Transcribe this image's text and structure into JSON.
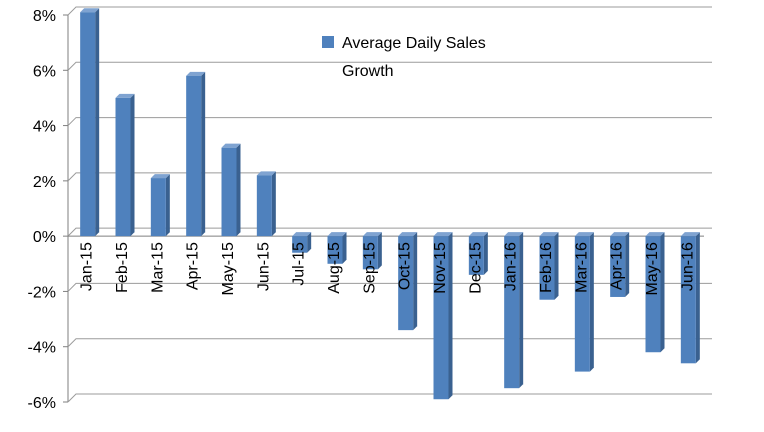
{
  "chart_data": {
    "type": "bar",
    "categories": [
      "Jan-15",
      "Feb-15",
      "Mar-15",
      "Apr-15",
      "May-15",
      "Jun-15",
      "Jul-15",
      "Aug-15",
      "Sep-15",
      "Oct-15",
      "Nov-15",
      "Dec-15",
      "Jan-16",
      "Feb-16",
      "Mar-16",
      "Apr-16",
      "May-16",
      "Jun-16"
    ],
    "series": [
      {
        "name": "Average Daily Sales Growth",
        "values": [
          8.1,
          5.0,
          2.1,
          5.8,
          3.2,
          2.2,
          -0.6,
          -1.0,
          -1.2,
          -3.4,
          -5.9,
          -1.4,
          -5.5,
          -2.3,
          -4.9,
          -2.2,
          -4.2,
          -4.6
        ]
      }
    ],
    "yticks": [
      "-6%",
      "-4%",
      "-2%",
      "0%",
      "2%",
      "4%",
      "6%",
      "8%"
    ],
    "ylim": [
      -6,
      8
    ],
    "grid": true,
    "legend": {
      "position": "top-center",
      "lines": [
        "Average Daily Sales",
        "Growth"
      ]
    },
    "colors": {
      "bar_front": "#4F81BD",
      "bar_side": "#3A6190",
      "bar_top": "#7FA3D1",
      "gridline": "#9B9B9B",
      "wall": "#DCDCDC",
      "axis": "#7F7F7F"
    }
  }
}
